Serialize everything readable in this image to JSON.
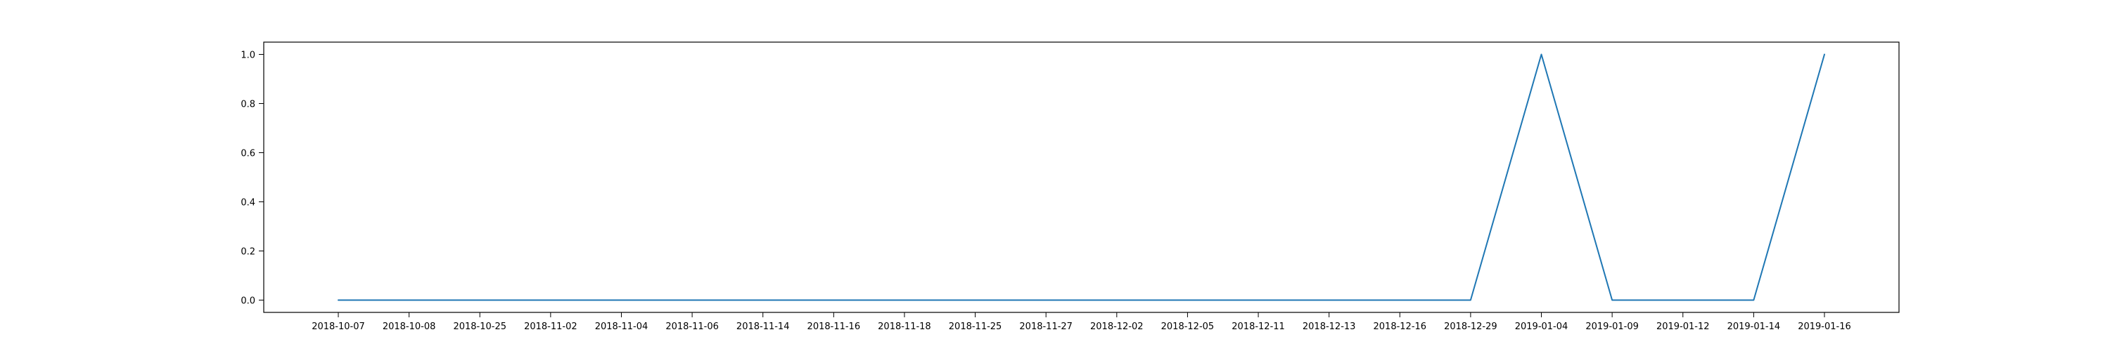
{
  "chart_data": {
    "type": "line",
    "categories": [
      "2018-10-07",
      "2018-10-08",
      "2018-10-25",
      "2018-11-02",
      "2018-11-04",
      "2018-11-06",
      "2018-11-14",
      "2018-11-16",
      "2018-11-18",
      "2018-11-25",
      "2018-11-27",
      "2018-12-02",
      "2018-12-05",
      "2018-12-11",
      "2018-12-13",
      "2018-12-16",
      "2018-12-29",
      "2019-01-04",
      "2019-01-09",
      "2019-01-12",
      "2019-01-14",
      "2019-01-16"
    ],
    "series": [
      {
        "values": [
          0,
          0,
          0,
          0,
          0,
          0,
          0,
          0,
          0,
          0,
          0,
          0,
          0,
          0,
          0,
          0,
          0,
          1,
          0,
          0,
          0,
          1
        ],
        "color": "#1f77b4"
      }
    ],
    "yticks": [
      "0.0",
      "0.2",
      "0.4",
      "0.6",
      "0.8",
      "1.0"
    ],
    "ylim": [
      -0.05,
      1.05
    ],
    "title": "",
    "xlabel": "",
    "ylabel": "",
    "grid": false,
    "legend": false
  }
}
